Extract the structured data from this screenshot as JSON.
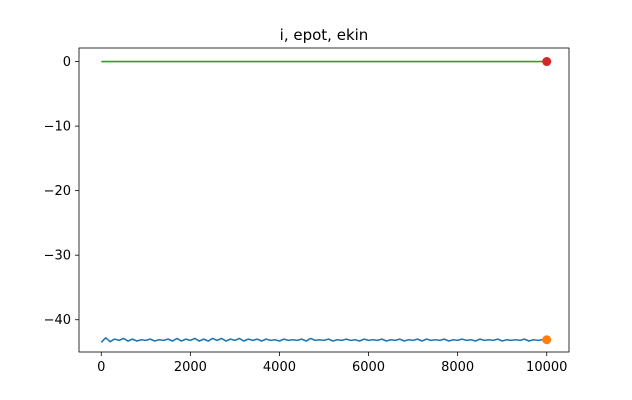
{
  "chart_data": {
    "type": "line",
    "title": "i, epot, ekin",
    "xlabel": "",
    "ylabel": "",
    "xlim": [
      -500,
      10500
    ],
    "ylim": [
      -45.0,
      2.1
    ],
    "xticks": [
      0,
      2000,
      4000,
      6000,
      8000,
      10000
    ],
    "yticks": [
      0,
      -10,
      -20,
      -30,
      -40
    ],
    "xtick_labels": [
      "0",
      "2000",
      "4000",
      "6000",
      "8000",
      "10000"
    ],
    "ytick_labels": [
      "0",
      "−10",
      "−20",
      "−30",
      "−40"
    ],
    "grid": false,
    "series": [
      {
        "color": "#1f77b4",
        "style": "line",
        "x": [
          0,
          100,
          200,
          300,
          400,
          500,
          600,
          700,
          800,
          900,
          1000,
          1100,
          1200,
          1300,
          1400,
          1500,
          1600,
          1700,
          1800,
          1900,
          2000,
          2100,
          2200,
          2300,
          2400,
          2500,
          2600,
          2700,
          2800,
          2900,
          3000,
          3100,
          3200,
          3300,
          3400,
          3500,
          3600,
          3700,
          3800,
          3900,
          4000,
          4100,
          4200,
          4300,
          4400,
          4500,
          4600,
          4700,
          4800,
          4900,
          5000,
          5100,
          5200,
          5300,
          5400,
          5500,
          5600,
          5700,
          5800,
          5900,
          6000,
          6100,
          6200,
          6300,
          6400,
          6500,
          6600,
          6700,
          6800,
          6900,
          7000,
          7100,
          7200,
          7300,
          7400,
          7500,
          7600,
          7700,
          7800,
          7900,
          8000,
          8100,
          8200,
          8300,
          8400,
          8500,
          8600,
          8700,
          8800,
          8900,
          9000,
          9100,
          9200,
          9300,
          9400,
          9500,
          9600,
          9700,
          9800,
          9900,
          10000
        ],
        "y": [
          -43.5,
          -42.8,
          -43.4,
          -43.0,
          -43.2,
          -42.9,
          -43.3,
          -43.0,
          -43.3,
          -43.1,
          -43.2,
          -43.0,
          -43.3,
          -43.1,
          -43.2,
          -43.0,
          -43.3,
          -42.9,
          -43.3,
          -43.0,
          -43.2,
          -42.9,
          -43.3,
          -43.0,
          -43.3,
          -42.9,
          -43.2,
          -42.9,
          -43.3,
          -43.0,
          -43.2,
          -42.9,
          -43.3,
          -43.0,
          -43.2,
          -43.0,
          -43.3,
          -43.0,
          -43.2,
          -43.1,
          -43.3,
          -43.0,
          -43.2,
          -43.1,
          -43.2,
          -43.0,
          -43.3,
          -42.9,
          -43.2,
          -43.1,
          -43.2,
          -43.0,
          -43.3,
          -43.1,
          -43.2,
          -43.0,
          -43.2,
          -43.1,
          -43.3,
          -43.0,
          -43.2,
          -43.1,
          -43.2,
          -43.0,
          -43.3,
          -43.1,
          -43.2,
          -43.0,
          -43.3,
          -43.1,
          -43.2,
          -43.0,
          -43.3,
          -43.0,
          -43.2,
          -43.1,
          -43.2,
          -43.0,
          -43.3,
          -43.1,
          -43.2,
          -43.0,
          -43.2,
          -43.1,
          -43.3,
          -43.0,
          -43.2,
          -43.1,
          -43.2,
          -43.0,
          -43.3,
          -43.1,
          -43.2,
          -43.1,
          -43.2,
          -43.0,
          -43.3,
          -43.1,
          -43.2,
          -43.1,
          -43.3
        ]
      },
      {
        "color": "#2ca02c",
        "style": "line",
        "x": [
          0,
          10000
        ],
        "y": [
          0.0,
          0.0
        ]
      },
      {
        "color": "#ff7f0e",
        "style": "marker",
        "x": [
          10000
        ],
        "y": [
          -43.1
        ]
      },
      {
        "color": "#d62728",
        "style": "marker",
        "x": [
          10000
        ],
        "y": [
          0.0
        ]
      }
    ]
  }
}
